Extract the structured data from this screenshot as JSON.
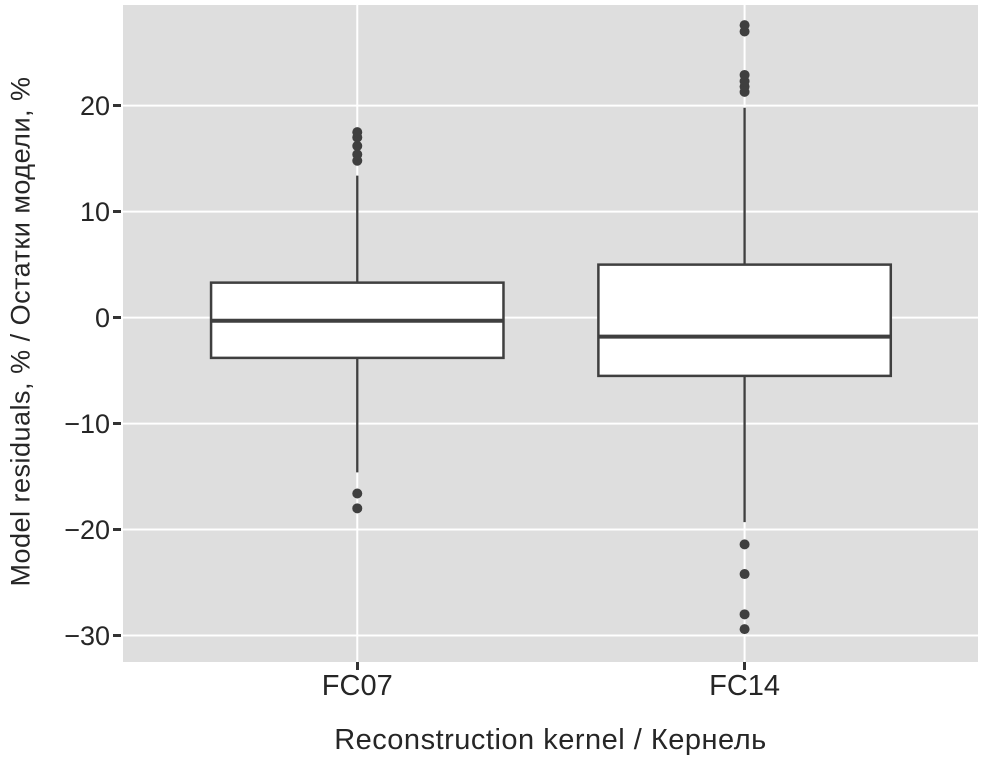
{
  "chart_data": {
    "type": "boxplot",
    "title": "",
    "xlabel": "Reconstruction kernel / Кернель",
    "ylabel": "Model residuals, % / Остатки модели, %",
    "categories": [
      "FC07",
      "FC14"
    ],
    "ylim": [
      -32.5,
      29.5
    ],
    "yticks": [
      20,
      10,
      0,
      -10,
      -20,
      -30
    ],
    "ytick_labels": [
      "20",
      "10",
      "0",
      "−10",
      "−20",
      "−30"
    ],
    "grid": {
      "horizontal_major": true,
      "vertical_at_categories": true,
      "style": "white lines on gray panel"
    },
    "legend": "none",
    "series": [
      {
        "name": "FC07",
        "q1": -3.8,
        "median": -0.3,
        "q3": 3.3,
        "whisker_low": -14.6,
        "whisker_high": 13.4,
        "outliers_high": [
          14.8,
          15.4,
          16.2,
          17.0,
          17.5
        ],
        "outliers_low": [
          -16.6,
          -18.0
        ]
      },
      {
        "name": "FC14",
        "q1": -5.5,
        "median": -1.8,
        "q3": 5.0,
        "whisker_low": -19.3,
        "whisker_high": 19.8,
        "outliers_high": [
          21.3,
          21.8,
          22.3,
          22.9,
          27.0,
          27.6
        ],
        "outliers_low": [
          -21.4,
          -24.2,
          -28.0,
          -29.4
        ]
      }
    ],
    "colors": {
      "panel_bg": "#dedede",
      "grid": "#ffffff",
      "box_fill": "#ffffff",
      "stroke": "#3f3f3f",
      "text": "#262626"
    }
  }
}
